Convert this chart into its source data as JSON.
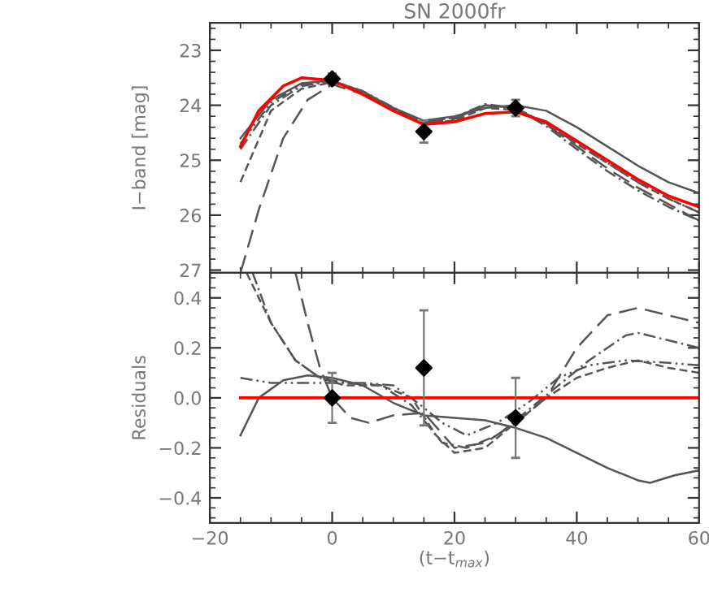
{
  "chart_data": [
    {
      "type": "line",
      "title": "SN 2000fr",
      "ylabel": "I−band [mag]",
      "xlim": [
        -20,
        60
      ],
      "xticks": [
        -20,
        0,
        20,
        40,
        60
      ],
      "ylim": [
        27.05,
        22.5
      ],
      "yticks": [
        23,
        24,
        25,
        26,
        27
      ],
      "tick_labels": "y",
      "grid": false,
      "legend": false,
      "marker": "none",
      "series": [
        {
          "color": "#555555",
          "line_style": "solid",
          "x": [
            -15,
            -10,
            -5,
            0,
            5,
            10,
            15,
            20,
            25,
            30,
            35,
            40,
            45,
            50,
            55,
            60
          ],
          "values": [
            24.6,
            23.9,
            23.6,
            23.55,
            23.75,
            24.05,
            24.28,
            24.2,
            24.05,
            24.0,
            24.1,
            24.4,
            24.75,
            25.1,
            25.4,
            25.6
          ]
        },
        {
          "color": "#555555",
          "line_style": "longdash",
          "x": [
            -15,
            -12,
            -8,
            -4,
            0,
            5,
            10,
            15,
            20,
            25,
            30,
            35,
            40,
            45,
            50,
            55,
            60
          ],
          "values": [
            27.05,
            25.9,
            24.6,
            23.9,
            23.62,
            23.8,
            24.1,
            24.33,
            24.25,
            24.0,
            24.05,
            24.35,
            24.75,
            25.15,
            25.5,
            25.8,
            26.1
          ]
        },
        {
          "color": "#555555",
          "line_style": "dashed",
          "x": [
            -15,
            -10,
            -5,
            0,
            5,
            10,
            15,
            20,
            25,
            30,
            35,
            40,
            45,
            50,
            55,
            60
          ],
          "values": [
            25.4,
            24.1,
            23.7,
            23.58,
            23.78,
            24.08,
            24.32,
            24.28,
            24.05,
            24.08,
            24.35,
            24.7,
            25.05,
            25.4,
            25.7,
            25.95
          ]
        },
        {
          "color": "#555555",
          "line_style": "dashdot",
          "x": [
            -15,
            -10,
            -5,
            0,
            5,
            10,
            15,
            20,
            25,
            30,
            35,
            40,
            45,
            50,
            55,
            60
          ],
          "values": [
            24.8,
            24.0,
            23.65,
            23.57,
            23.75,
            24.05,
            24.3,
            24.22,
            23.98,
            24.05,
            24.38,
            24.8,
            25.2,
            25.55,
            25.85,
            26.1
          ]
        },
        {
          "color": "#555555",
          "line_style": "dashdotdot",
          "x": [
            -15,
            -10,
            -5,
            0,
            5,
            10,
            15,
            20,
            25,
            30,
            35,
            40,
            45,
            50,
            55,
            60
          ],
          "values": [
            24.7,
            23.95,
            23.62,
            23.56,
            23.74,
            24.04,
            24.3,
            24.22,
            24.0,
            24.05,
            24.33,
            24.7,
            25.05,
            25.4,
            25.7,
            25.95
          ]
        },
        {
          "color": "#ff0000",
          "line_style": "solid",
          "x": [
            -15,
            -12,
            -8,
            -5,
            0,
            5,
            10,
            15,
            20,
            25,
            30,
            35,
            40,
            45,
            50,
            55,
            60
          ],
          "values": [
            24.75,
            24.1,
            23.65,
            23.5,
            23.55,
            23.8,
            24.1,
            24.35,
            24.3,
            24.15,
            24.12,
            24.3,
            24.65,
            25.0,
            25.35,
            25.65,
            25.85
          ]
        },
        {
          "type": "scatter",
          "color": "#000000",
          "marker": "diamond",
          "x": [
            0,
            15,
            30
          ],
          "values": [
            23.52,
            24.48,
            24.05
          ],
          "errors": [
            0.1,
            0.2,
            0.15
          ]
        }
      ]
    },
    {
      "type": "line",
      "xlabel": "(t−t$_{max}$)",
      "ylabel": "Residuals",
      "xlim": [
        -20,
        60
      ],
      "xticks": [
        {
          "value": -20,
          "label": "−20"
        },
        0,
        20,
        40,
        60
      ],
      "ylim": [
        -0.5,
        0.5
      ],
      "yticks": [
        {
          "value": -0.4,
          "label": "−0.4"
        },
        {
          "value": -0.2,
          "label": "−0.2"
        },
        {
          "value": 0.0,
          "label": "0.0"
        },
        0.2,
        0.4
      ],
      "grid": false,
      "legend": false,
      "marker": "none",
      "series": [
        {
          "color": "#555555",
          "line_style": "solid",
          "x": [
            -15,
            -12,
            -8,
            -4,
            0,
            5,
            10,
            15,
            20,
            25,
            30,
            35,
            40,
            45,
            50,
            52,
            56,
            60
          ],
          "values": [
            -0.15,
            0.0,
            0.07,
            0.09,
            0.08,
            0.05,
            -0.02,
            -0.07,
            -0.08,
            -0.09,
            -0.12,
            -0.16,
            -0.22,
            -0.28,
            -0.33,
            -0.34,
            -0.31,
            -0.29
          ]
        },
        {
          "color": "#555555",
          "line_style": "longdash",
          "x": [
            -6,
            -4,
            -2,
            0,
            3,
            6,
            10,
            15,
            20,
            25,
            30,
            35,
            40,
            45,
            50,
            55,
            60
          ],
          "values": [
            0.5,
            0.3,
            0.12,
            0.0,
            -0.08,
            -0.1,
            -0.07,
            -0.06,
            -0.2,
            -0.18,
            -0.1,
            0.0,
            0.2,
            0.33,
            0.36,
            0.33,
            0.3
          ]
        },
        {
          "color": "#555555",
          "line_style": "dashed",
          "x": [
            -14,
            -10,
            -6,
            -2,
            2,
            8,
            13,
            17,
            20,
            25,
            30,
            35,
            40,
            45,
            50,
            55,
            60
          ],
          "values": [
            0.5,
            0.3,
            0.15,
            0.08,
            0.05,
            0.05,
            0.0,
            -0.15,
            -0.22,
            -0.2,
            -0.1,
            0.0,
            0.08,
            0.12,
            0.15,
            0.12,
            0.1
          ]
        },
        {
          "color": "#555555",
          "line_style": "dashdot",
          "x": [
            -13,
            -10,
            -6,
            -2,
            2,
            8,
            13,
            18,
            22,
            27,
            32,
            37,
            42,
            48,
            50,
            55,
            60
          ],
          "values": [
            0.5,
            0.3,
            0.15,
            0.08,
            0.06,
            0.05,
            -0.03,
            -0.18,
            -0.2,
            -0.15,
            -0.05,
            0.05,
            0.15,
            0.25,
            0.26,
            0.23,
            0.2
          ]
        },
        {
          "color": "#555555",
          "line_style": "dashdotdot",
          "x": [
            -15,
            -10,
            -5,
            0,
            5,
            10,
            14,
            18,
            22,
            27,
            32,
            37,
            42,
            48,
            55,
            60
          ],
          "values": [
            0.08,
            0.06,
            0.06,
            0.06,
            0.06,
            0.05,
            -0.02,
            -0.1,
            -0.15,
            -0.1,
            -0.02,
            0.08,
            0.13,
            0.15,
            0.14,
            0.13
          ]
        },
        {
          "color": "#ff0000",
          "line_style": "solid",
          "x": [
            -15,
            60
          ],
          "values": [
            0.0,
            0.0
          ]
        },
        {
          "type": "scatter",
          "color": "#000000",
          "marker": "diamond",
          "x": [
            0,
            15,
            30
          ],
          "values": [
            0.0,
            0.12,
            -0.08
          ],
          "errors": [
            0.1,
            0.23,
            0.16
          ]
        }
      ]
    }
  ]
}
